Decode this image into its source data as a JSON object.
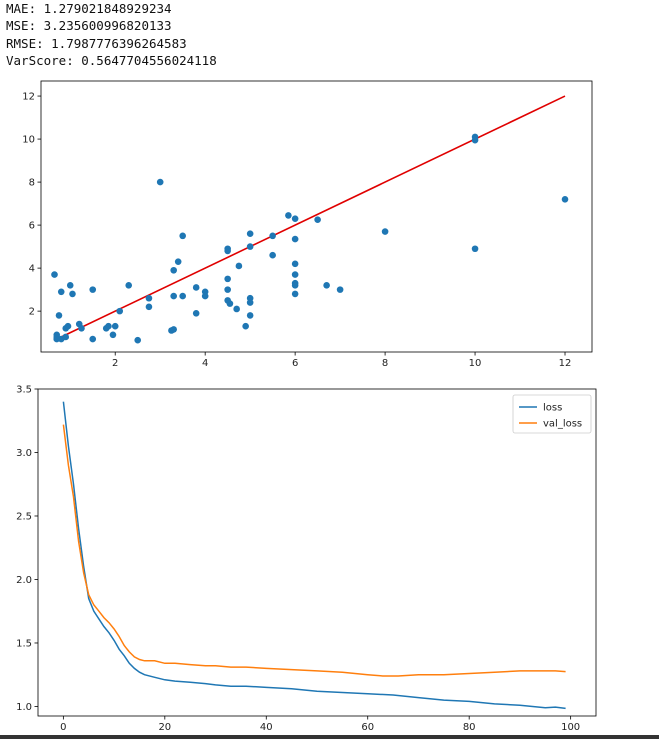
{
  "metrics": {
    "mae": "MAE: 1.279021848929234",
    "mse": "MSE: 3.235600996820133",
    "rmse": "RMSE: 1.7987776396264583",
    "varscore": "VarScore: 0.5647704556024118"
  },
  "chart_data": [
    {
      "type": "scatter",
      "title": "",
      "xlabel": "",
      "ylabel": "",
      "xlim": [
        0.35,
        12.6
      ],
      "ylim": [
        0.1,
        12.7
      ],
      "xticks": [
        2,
        4,
        6,
        8,
        10,
        12
      ],
      "yticks": [
        2,
        4,
        6,
        8,
        10,
        12
      ],
      "grid": false,
      "colors": {
        "points": "#1f77b4",
        "line": "#e00000"
      },
      "reference_line": {
        "x": [
          0.7,
          12
        ],
        "y": [
          0.7,
          12
        ]
      },
      "points": [
        [
          0.7,
          0.7
        ],
        [
          0.7,
          0.9
        ],
        [
          0.7,
          0.8
        ],
        [
          0.65,
          3.7
        ],
        [
          0.75,
          1.8
        ],
        [
          0.8,
          2.9
        ],
        [
          0.8,
          0.7
        ],
        [
          0.9,
          0.8
        ],
        [
          0.9,
          1.2
        ],
        [
          0.95,
          1.3
        ],
        [
          1.0,
          3.2
        ],
        [
          1.05,
          2.8
        ],
        [
          1.2,
          1.4
        ],
        [
          1.25,
          1.2
        ],
        [
          1.5,
          3.0
        ],
        [
          1.5,
          0.7
        ],
        [
          1.8,
          1.2
        ],
        [
          1.85,
          1.3
        ],
        [
          1.95,
          0.9
        ],
        [
          2.0,
          1.3
        ],
        [
          2.1,
          2.0
        ],
        [
          2.3,
          3.2
        ],
        [
          2.5,
          0.65
        ],
        [
          2.75,
          2.6
        ],
        [
          2.75,
          2.2
        ],
        [
          3.0,
          8.0
        ],
        [
          3.25,
          1.1
        ],
        [
          3.3,
          1.15
        ],
        [
          3.3,
          2.7
        ],
        [
          3.3,
          3.9
        ],
        [
          3.4,
          4.3
        ],
        [
          3.5,
          5.5
        ],
        [
          3.5,
          2.7
        ],
        [
          3.8,
          3.1
        ],
        [
          3.8,
          1.9
        ],
        [
          4.0,
          2.9
        ],
        [
          4.0,
          2.7
        ],
        [
          4.5,
          4.9
        ],
        [
          4.5,
          4.8
        ],
        [
          4.5,
          3.5
        ],
        [
          4.5,
          3.0
        ],
        [
          4.5,
          2.5
        ],
        [
          4.55,
          2.35
        ],
        [
          4.7,
          2.1
        ],
        [
          4.75,
          4.1
        ],
        [
          4.9,
          1.3
        ],
        [
          5.0,
          5.6
        ],
        [
          5.0,
          5.0
        ],
        [
          5.0,
          2.6
        ],
        [
          5.0,
          2.4
        ],
        [
          5.0,
          1.8
        ],
        [
          5.5,
          5.5
        ],
        [
          5.5,
          4.6
        ],
        [
          5.85,
          6.45
        ],
        [
          6.0,
          6.3
        ],
        [
          6.0,
          5.35
        ],
        [
          6.0,
          4.2
        ],
        [
          6.0,
          3.7
        ],
        [
          6.0,
          3.3
        ],
        [
          6.0,
          3.2
        ],
        [
          6.0,
          2.8
        ],
        [
          6.5,
          6.25
        ],
        [
          6.7,
          3.2
        ],
        [
          7.0,
          3.0
        ],
        [
          8.0,
          5.7
        ],
        [
          10.0,
          10.1
        ],
        [
          10.0,
          9.95
        ],
        [
          10.0,
          4.9
        ],
        [
          12.0,
          7.2
        ]
      ]
    },
    {
      "type": "line",
      "title": "",
      "xlabel": "",
      "ylabel": "",
      "xlim": [
        -5,
        105
      ],
      "ylim": [
        0.925,
        3.5
      ],
      "xticks": [
        0,
        20,
        40,
        60,
        80,
        100
      ],
      "yticks": [
        1.0,
        1.5,
        2.0,
        2.5,
        3.0,
        3.5
      ],
      "ytick_labels": [
        "1.0",
        "1.5",
        "2.0",
        "2.5",
        "3.0",
        "3.5"
      ],
      "grid": false,
      "legend": "top-right",
      "series": [
        {
          "name": "loss",
          "color": "#1f77b4",
          "x": [
            0,
            1,
            2,
            3,
            4,
            5,
            6,
            7,
            8,
            9,
            10,
            11,
            12,
            13,
            14,
            15,
            16,
            18,
            20,
            22,
            25,
            28,
            30,
            33,
            36,
            40,
            45,
            50,
            55,
            60,
            65,
            70,
            75,
            80,
            85,
            90,
            95,
            97,
            99
          ],
          "y": [
            3.4,
            3.05,
            2.75,
            2.4,
            2.1,
            1.85,
            1.75,
            1.69,
            1.63,
            1.58,
            1.52,
            1.45,
            1.4,
            1.34,
            1.3,
            1.27,
            1.25,
            1.23,
            1.21,
            1.2,
            1.19,
            1.18,
            1.17,
            1.16,
            1.16,
            1.15,
            1.14,
            1.12,
            1.11,
            1.1,
            1.09,
            1.07,
            1.05,
            1.04,
            1.02,
            1.01,
            0.99,
            0.995,
            0.985
          ]
        },
        {
          "name": "val_loss",
          "color": "#ff7f0e",
          "x": [
            0,
            1,
            2,
            3,
            4,
            5,
            6,
            7,
            8,
            9,
            10,
            11,
            12,
            13,
            14,
            15,
            16,
            18,
            20,
            22,
            25,
            28,
            30,
            33,
            36,
            40,
            45,
            50,
            55,
            60,
            63,
            66,
            70,
            75,
            80,
            85,
            90,
            95,
            97,
            99
          ],
          "y": [
            3.22,
            2.9,
            2.65,
            2.3,
            2.05,
            1.88,
            1.8,
            1.75,
            1.7,
            1.66,
            1.61,
            1.55,
            1.48,
            1.43,
            1.39,
            1.37,
            1.36,
            1.36,
            1.34,
            1.34,
            1.33,
            1.32,
            1.32,
            1.31,
            1.31,
            1.3,
            1.29,
            1.28,
            1.27,
            1.25,
            1.24,
            1.24,
            1.25,
            1.25,
            1.26,
            1.27,
            1.28,
            1.28,
            1.28,
            1.275
          ]
        }
      ]
    }
  ]
}
